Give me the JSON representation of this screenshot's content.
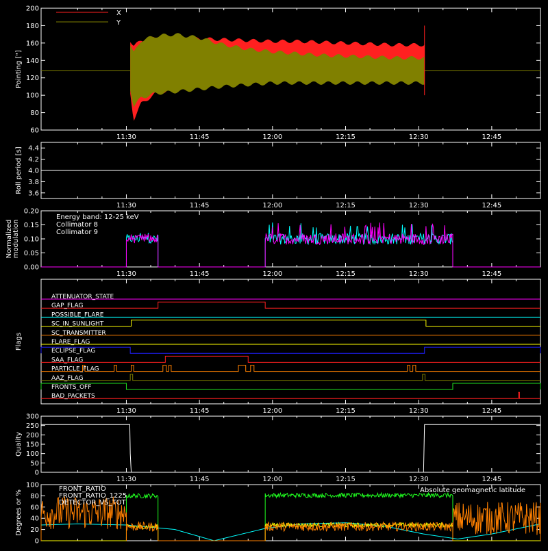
{
  "time_ticks": [
    "11:30",
    "11:45",
    "12:00",
    "12:15",
    "12:30",
    "12:45"
  ],
  "time_ticks_minutes": [
    30,
    45,
    60,
    75,
    90,
    105
  ],
  "x_range_minutes": [
    12.5,
    115
  ],
  "chart_data": [
    {
      "id": "pointing",
      "type": "area",
      "ylabel": "Pointing [\"]",
      "ylim": [
        60,
        200
      ],
      "yticks": [
        60,
        80,
        100,
        120,
        140,
        160,
        180,
        200
      ],
      "legend": [
        {
          "name": "X",
          "color": "#ff2020"
        },
        {
          "name": "Y",
          "color": "#808000"
        }
      ],
      "series": [
        {
          "name": "X",
          "color": "#ff2020",
          "x_start": 30.8,
          "x_end": 91.2,
          "envelope_x": [
            30.8,
            31.5,
            33,
            36,
            40,
            45,
            50,
            55,
            60,
            65,
            70,
            75,
            80,
            85,
            90,
            91.2
          ],
          "envelope_low": [
            100,
            70,
            88,
            100,
            105,
            110,
            115,
            118,
            120,
            121,
            122,
            122,
            122,
            123,
            124,
            124
          ],
          "envelope_high": [
            165,
            158,
            165,
            168,
            168,
            167,
            166,
            165,
            164,
            164,
            163,
            162,
            161,
            160,
            160,
            160
          ]
        },
        {
          "name": "Y",
          "color": "#808000",
          "baseline": 128,
          "x_start": 30.8,
          "x_end": 91.2,
          "envelope_x": [
            30.8,
            31.5,
            33,
            36,
            40,
            45,
            50,
            55,
            60,
            65,
            70,
            75,
            80,
            85,
            90,
            91.2
          ],
          "envelope_low": [
            105,
            85,
            95,
            100,
            102,
            105,
            108,
            110,
            112,
            112,
            112,
            112,
            112,
            112,
            112,
            112
          ],
          "envelope_high": [
            160,
            150,
            165,
            170,
            172,
            168,
            160,
            155,
            152,
            150,
            148,
            147,
            146,
            145,
            145,
            145
          ]
        }
      ]
    },
    {
      "id": "roll",
      "type": "line",
      "ylabel": "Roll period [s]",
      "ylim": [
        3.5,
        4.5
      ],
      "yticks": [
        "3.6",
        "3.8",
        "4.0",
        "4.2",
        "4.4"
      ],
      "yticks_values": [
        3.6,
        3.8,
        4.0,
        4.2,
        4.4
      ],
      "series": [
        {
          "name": "roll",
          "color": "#ffffff",
          "x": [
            12.5,
            115
          ],
          "y": [
            4.0,
            4.0
          ]
        }
      ]
    },
    {
      "id": "modulation",
      "type": "line",
      "ylabel": "Normalized modulation",
      "ylabel_lines": [
        "Normalized",
        "modulation"
      ],
      "ylim": [
        0,
        0.2
      ],
      "yticks": [
        "0.00",
        "0.05",
        "0.10",
        "0.15",
        "0.20"
      ],
      "yticks_values": [
        0,
        0.05,
        0.1,
        0.15,
        0.2
      ],
      "legend": [
        {
          "name": "Energy band: 12-25 keV",
          "color": "#ffffff"
        },
        {
          "name": "Collimator 8",
          "color": "#00ffff"
        },
        {
          "name": "Collimator 9",
          "color": "#ff00ff"
        }
      ],
      "segments": [
        {
          "x_start": 30,
          "x_end": 36.5,
          "mean": 0.1,
          "spread": 0.015,
          "peak": 0.13
        },
        {
          "x_start": 58.5,
          "x_end": 97,
          "mean": 0.1,
          "spread": 0.02,
          "peak": 0.16
        }
      ]
    },
    {
      "id": "flags",
      "type": "table",
      "ylabel": "Flags",
      "flags": [
        {
          "name": "ATTENUATOR_STATE",
          "color": "#ff00ff",
          "high_intervals": []
        },
        {
          "name": "GAP_FLAG",
          "color": "#ff2020",
          "high_intervals": [
            [
              36.5,
              58.5
            ]
          ]
        },
        {
          "name": "POSSIBLE_FLARE",
          "color": "#00ffff",
          "high_intervals": []
        },
        {
          "name": "SC_IN_SUNLIGHT",
          "color": "#ffff00",
          "high_intervals": [
            [
              31,
              91.5
            ]
          ]
        },
        {
          "name": "SC_TRANSMITTER",
          "color": "#ff8000",
          "high_intervals": []
        },
        {
          "name": "FLARE_FLAG",
          "color": "#ffff00",
          "high_intervals": []
        },
        {
          "name": "ECLIPSE_FLAG",
          "color": "#2020ff",
          "high_intervals": [
            [
              12.5,
              30.8
            ],
            [
              91.2,
              115
            ]
          ]
        },
        {
          "name": "SAA_FLAG",
          "color": "#ff2020",
          "high_intervals": [
            [
              38,
              55
            ]
          ]
        },
        {
          "name": "PARTICLE_FLAG",
          "color": "#ff8000",
          "high_intervals": [
            [
              21,
              21.5
            ],
            [
              27.5,
              28
            ],
            [
              31,
              31.5
            ],
            [
              37.5,
              38.2
            ],
            [
              38.7,
              39.2
            ],
            [
              53,
              54.5
            ],
            [
              55.5,
              56.2
            ],
            [
              87.7,
              88.2
            ],
            [
              88.8,
              89.4
            ]
          ]
        },
        {
          "name": "AAZ_FLAG",
          "color": "#808000",
          "high_intervals": [
            [
              30.8,
              31.3
            ],
            [
              90.8,
              91.3
            ]
          ]
        },
        {
          "name": "FRONTS_OFF",
          "color": "#20e020",
          "high_intervals": [
            [
              12.5,
              30
            ],
            [
              97,
              115
            ]
          ]
        },
        {
          "name": "BAD_PACKETS",
          "color": "#ff2020",
          "high_intervals": [
            [
              110.5,
              110.7
            ]
          ]
        }
      ]
    },
    {
      "id": "quality",
      "type": "line",
      "ylabel": "Quality",
      "ylim": [
        0,
        300
      ],
      "yticks": [
        0,
        50,
        100,
        150,
        200,
        250,
        300
      ],
      "series": [
        {
          "name": "quality",
          "color": "#ffffff",
          "x": [
            12.5,
            30.7,
            30.8,
            31.0,
            91.0,
            91.2,
            115
          ],
          "y": [
            255,
            255,
            100,
            0,
            0,
            255,
            255
          ]
        }
      ]
    },
    {
      "id": "ratios",
      "type": "line",
      "ylabel": "Degrees or %",
      "ylim": [
        0,
        100
      ],
      "yticks": [
        0,
        20,
        40,
        60,
        80,
        100
      ],
      "legend": [
        {
          "name": "FRONT_RATIO",
          "color": "#ffff00"
        },
        {
          "name": "FRONT_RATIO_1225",
          "color": "#20ff20"
        },
        {
          "name": "DETECTOR_VS_TOT",
          "color": "#ff8000"
        },
        {
          "name": "Absolute geomagnetic latitude",
          "color": "#00ffff"
        }
      ],
      "series": [
        {
          "name": "Absolute geomagnetic latitude",
          "color": "#00ffff",
          "x": [
            12.5,
            20,
            30,
            40,
            48,
            58.5,
            66,
            75,
            83,
            91,
            98,
            105,
            115
          ],
          "y": [
            28,
            30,
            28,
            20,
            0,
            22,
            30,
            32,
            26,
            12,
            3,
            12,
            30
          ]
        },
        {
          "name": "FRONT_RATIO_1225",
          "color": "#20ff20",
          "segments": [
            [
              30,
              36.5,
              80
            ],
            [
              58.5,
              97,
              81
            ]
          ]
        },
        {
          "name": "FRONT_RATIO",
          "color": "#ffff00",
          "segments": [
            [
              30,
              36.5,
              25
            ],
            [
              58.5,
              97,
              28
            ]
          ]
        },
        {
          "name": "DETECTOR_VS_TOT",
          "color": "#ff8000",
          "segments": [
            [
              12.5,
              30,
              50
            ],
            [
              30,
              36.5,
              25
            ],
            [
              58.5,
              97,
              25
            ],
            [
              97,
              115,
              40
            ]
          ]
        }
      ]
    }
  ]
}
